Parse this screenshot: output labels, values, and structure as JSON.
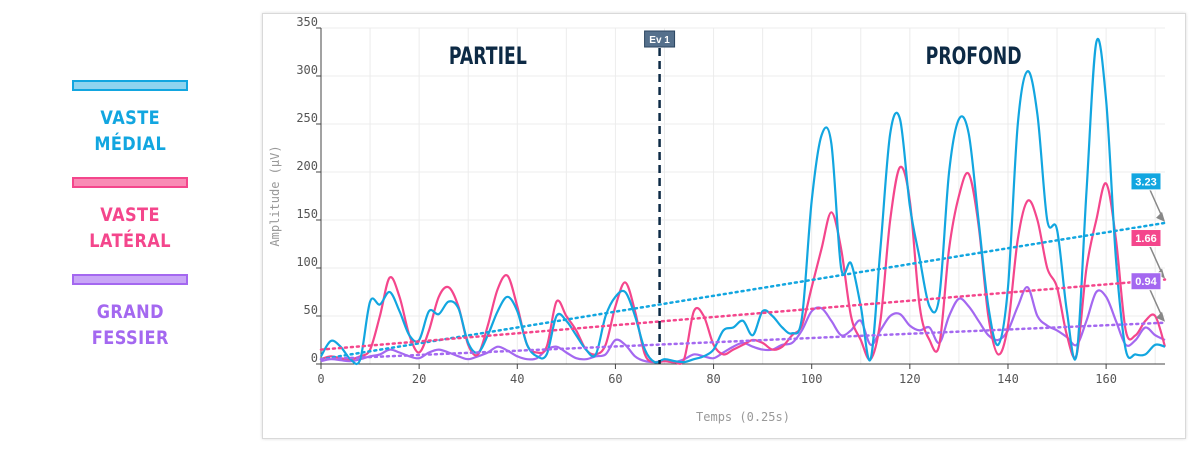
{
  "legend": [
    {
      "label": "VASTE\nMÉDIAL",
      "color": "#12a6e0",
      "fill": "#8fd4ef"
    },
    {
      "label": "VASTE\nLATÉRAL",
      "color": "#f4468c",
      "fill": "#f98bb5"
    },
    {
      "label": "GRAND\nFESSIER",
      "color": "#a468f0",
      "fill": "#c9a6f7"
    }
  ],
  "chart_data": {
    "type": "line",
    "xlabel": "Temps (0.25s)",
    "ylabel": "Amplitude (µV)",
    "xlim": [
      0,
      172
    ],
    "ylim": [
      0,
      350
    ],
    "xticks": [
      0,
      20,
      40,
      60,
      80,
      100,
      120,
      140,
      160
    ],
    "yticks": [
      0,
      50,
      100,
      150,
      200,
      250,
      300,
      350
    ],
    "grid": true,
    "event": {
      "label": "Ev 1",
      "x": 69
    },
    "regions": [
      {
        "label": "PARTIEL",
        "x": 34
      },
      {
        "label": "PROFOND",
        "x": 133
      }
    ],
    "series": [
      {
        "color": "#12a6e0",
        "trend_label": "3.23",
        "trend": [
          5,
          147
        ],
        "points": [
          [
            0,
            8
          ],
          [
            2,
            24
          ],
          [
            4,
            18
          ],
          [
            6,
            5
          ],
          [
            8,
            5
          ],
          [
            10,
            65
          ],
          [
            12,
            62
          ],
          [
            14,
            75
          ],
          [
            16,
            55
          ],
          [
            18,
            30
          ],
          [
            20,
            25
          ],
          [
            22,
            55
          ],
          [
            24,
            52
          ],
          [
            26,
            65
          ],
          [
            28,
            58
          ],
          [
            30,
            22
          ],
          [
            32,
            12
          ],
          [
            34,
            30
          ],
          [
            36,
            55
          ],
          [
            38,
            70
          ],
          [
            40,
            55
          ],
          [
            42,
            20
          ],
          [
            44,
            8
          ],
          [
            46,
            10
          ],
          [
            48,
            50
          ],
          [
            50,
            45
          ],
          [
            52,
            30
          ],
          [
            54,
            15
          ],
          [
            56,
            10
          ],
          [
            58,
            50
          ],
          [
            60,
            70
          ],
          [
            62,
            75
          ],
          [
            64,
            50
          ],
          [
            66,
            15
          ],
          [
            68,
            2
          ],
          [
            70,
            5
          ],
          [
            72,
            3
          ],
          [
            74,
            2
          ],
          [
            76,
            5
          ],
          [
            78,
            8
          ],
          [
            80,
            15
          ],
          [
            82,
            35
          ],
          [
            84,
            38
          ],
          [
            86,
            45
          ],
          [
            88,
            30
          ],
          [
            90,
            55
          ],
          [
            92,
            50
          ],
          [
            94,
            38
          ],
          [
            96,
            32
          ],
          [
            98,
            48
          ],
          [
            100,
            170
          ],
          [
            102,
            238
          ],
          [
            104,
            230
          ],
          [
            106,
            100
          ],
          [
            108,
            105
          ],
          [
            110,
            60
          ],
          [
            112,
            5
          ],
          [
            114,
            120
          ],
          [
            116,
            240
          ],
          [
            118,
            255
          ],
          [
            120,
            165
          ],
          [
            122,
            110
          ],
          [
            124,
            60
          ],
          [
            126,
            70
          ],
          [
            128,
            200
          ],
          [
            130,
            255
          ],
          [
            132,
            240
          ],
          [
            134,
            150
          ],
          [
            136,
            60
          ],
          [
            138,
            20
          ],
          [
            140,
            80
          ],
          [
            142,
            250
          ],
          [
            144,
            305
          ],
          [
            146,
            260
          ],
          [
            148,
            150
          ],
          [
            150,
            140
          ],
          [
            152,
            55
          ],
          [
            154,
            10
          ],
          [
            156,
            180
          ],
          [
            158,
            335
          ],
          [
            160,
            275
          ],
          [
            162,
            110
          ],
          [
            164,
            15
          ],
          [
            166,
            10
          ],
          [
            168,
            10
          ],
          [
            170,
            20
          ],
          [
            172,
            18
          ]
        ]
      },
      {
        "color": "#f4468c",
        "trend_label": "1.66",
        "trend": [
          15,
          88
        ],
        "points": [
          [
            0,
            5
          ],
          [
            2,
            8
          ],
          [
            4,
            6
          ],
          [
            6,
            5
          ],
          [
            8,
            8
          ],
          [
            10,
            15
          ],
          [
            12,
            50
          ],
          [
            14,
            90
          ],
          [
            16,
            70
          ],
          [
            18,
            30
          ],
          [
            20,
            12
          ],
          [
            22,
            35
          ],
          [
            24,
            70
          ],
          [
            26,
            80
          ],
          [
            28,
            60
          ],
          [
            30,
            20
          ],
          [
            32,
            10
          ],
          [
            34,
            40
          ],
          [
            36,
            78
          ],
          [
            38,
            92
          ],
          [
            40,
            60
          ],
          [
            42,
            20
          ],
          [
            44,
            12
          ],
          [
            46,
            18
          ],
          [
            48,
            65
          ],
          [
            50,
            50
          ],
          [
            52,
            35
          ],
          [
            54,
            15
          ],
          [
            56,
            10
          ],
          [
            58,
            20
          ],
          [
            60,
            60
          ],
          [
            62,
            85
          ],
          [
            64,
            55
          ],
          [
            66,
            10
          ],
          [
            68,
            2
          ],
          [
            70,
            3
          ],
          [
            72,
            2
          ],
          [
            74,
            5
          ],
          [
            76,
            55
          ],
          [
            78,
            50
          ],
          [
            80,
            20
          ],
          [
            82,
            10
          ],
          [
            84,
            15
          ],
          [
            86,
            20
          ],
          [
            88,
            25
          ],
          [
            90,
            22
          ],
          [
            92,
            15
          ],
          [
            94,
            18
          ],
          [
            96,
            30
          ],
          [
            98,
            40
          ],
          [
            100,
            80
          ],
          [
            102,
            120
          ],
          [
            104,
            158
          ],
          [
            106,
            120
          ],
          [
            108,
            50
          ],
          [
            110,
            25
          ],
          [
            112,
            5
          ],
          [
            114,
            45
          ],
          [
            116,
            150
          ],
          [
            118,
            205
          ],
          [
            120,
            170
          ],
          [
            122,
            60
          ],
          [
            124,
            25
          ],
          [
            126,
            20
          ],
          [
            128,
            120
          ],
          [
            130,
            175
          ],
          [
            132,
            198
          ],
          [
            134,
            145
          ],
          [
            136,
            50
          ],
          [
            138,
            10
          ],
          [
            140,
            40
          ],
          [
            142,
            130
          ],
          [
            144,
            170
          ],
          [
            146,
            150
          ],
          [
            148,
            100
          ],
          [
            150,
            80
          ],
          [
            152,
            30
          ],
          [
            154,
            10
          ],
          [
            156,
            100
          ],
          [
            158,
            150
          ],
          [
            160,
            188
          ],
          [
            162,
            130
          ],
          [
            164,
            35
          ],
          [
            166,
            30
          ],
          [
            168,
            45
          ],
          [
            170,
            50
          ],
          [
            172,
            18
          ]
        ]
      },
      {
        "color": "#a468f0",
        "trend_label": "0.94",
        "trend": [
          5,
          43
        ],
        "points": [
          [
            0,
            3
          ],
          [
            2,
            5
          ],
          [
            4,
            4
          ],
          [
            6,
            3
          ],
          [
            8,
            5
          ],
          [
            10,
            8
          ],
          [
            12,
            10
          ],
          [
            14,
            15
          ],
          [
            16,
            12
          ],
          [
            18,
            8
          ],
          [
            20,
            6
          ],
          [
            22,
            12
          ],
          [
            24,
            15
          ],
          [
            26,
            12
          ],
          [
            28,
            8
          ],
          [
            30,
            5
          ],
          [
            32,
            8
          ],
          [
            34,
            12
          ],
          [
            36,
            18
          ],
          [
            38,
            14
          ],
          [
            40,
            8
          ],
          [
            42,
            5
          ],
          [
            44,
            6
          ],
          [
            46,
            15
          ],
          [
            48,
            18
          ],
          [
            50,
            12
          ],
          [
            52,
            6
          ],
          [
            54,
            5
          ],
          [
            56,
            8
          ],
          [
            58,
            10
          ],
          [
            60,
            25
          ],
          [
            62,
            20
          ],
          [
            64,
            8
          ],
          [
            66,
            3
          ],
          [
            68,
            2
          ],
          [
            70,
            3
          ],
          [
            72,
            2
          ],
          [
            74,
            5
          ],
          [
            76,
            10
          ],
          [
            78,
            8
          ],
          [
            80,
            6
          ],
          [
            82,
            12
          ],
          [
            84,
            18
          ],
          [
            86,
            22
          ],
          [
            88,
            18
          ],
          [
            90,
            15
          ],
          [
            92,
            15
          ],
          [
            94,
            20
          ],
          [
            96,
            22
          ],
          [
            98,
            35
          ],
          [
            100,
            55
          ],
          [
            102,
            58
          ],
          [
            104,
            45
          ],
          [
            106,
            30
          ],
          [
            108,
            35
          ],
          [
            110,
            45
          ],
          [
            112,
            20
          ],
          [
            114,
            35
          ],
          [
            116,
            50
          ],
          [
            118,
            52
          ],
          [
            120,
            40
          ],
          [
            122,
            35
          ],
          [
            124,
            38
          ],
          [
            126,
            22
          ],
          [
            128,
            50
          ],
          [
            130,
            68
          ],
          [
            132,
            60
          ],
          [
            134,
            45
          ],
          [
            136,
            30
          ],
          [
            138,
            25
          ],
          [
            140,
            35
          ],
          [
            142,
            60
          ],
          [
            144,
            80
          ],
          [
            146,
            50
          ],
          [
            148,
            40
          ],
          [
            150,
            35
          ],
          [
            152,
            28
          ],
          [
            154,
            20
          ],
          [
            156,
            45
          ],
          [
            158,
            75
          ],
          [
            160,
            70
          ],
          [
            162,
            45
          ],
          [
            164,
            20
          ],
          [
            166,
            25
          ],
          [
            168,
            38
          ],
          [
            170,
            30
          ],
          [
            172,
            25
          ]
        ]
      }
    ]
  }
}
